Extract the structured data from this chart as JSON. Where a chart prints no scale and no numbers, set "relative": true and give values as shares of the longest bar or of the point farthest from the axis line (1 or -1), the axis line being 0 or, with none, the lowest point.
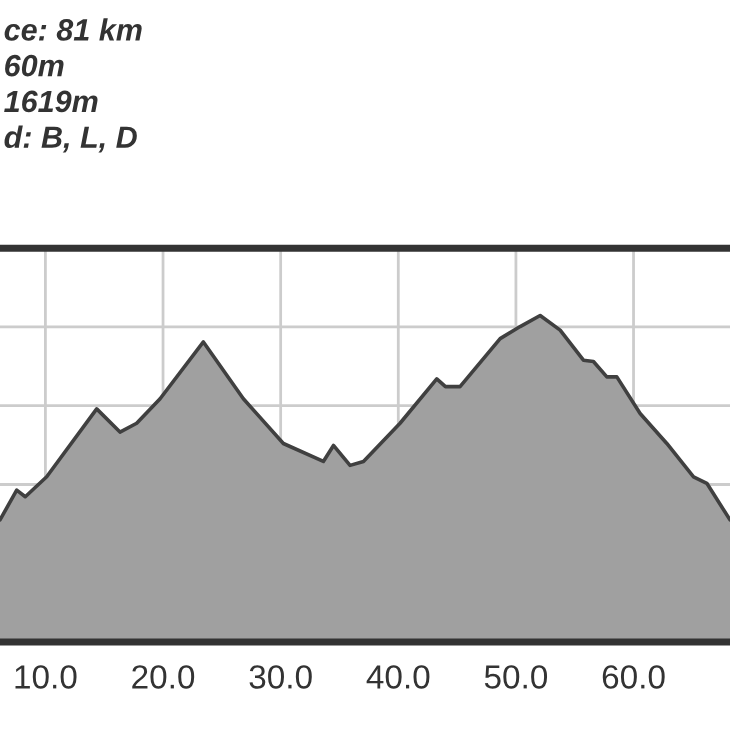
{
  "chart_data": {
    "type": "area",
    "relative": true,
    "annotations": [
      "ce: 81 km",
      "60m",
      "1619m",
      "d: B, L, D"
    ],
    "x": [
      6.14,
      7.56,
      8.29,
      10.11,
      14.36,
      16.34,
      17.76,
      19.75,
      23.43,
      26.83,
      30.23,
      33.63,
      34.49,
      35.9,
      37.04,
      40.15,
      43.27,
      44.01,
      45.25,
      48.66,
      50.36,
      52.06,
      53.76,
      55.74,
      56.59,
      57.73,
      58.58,
      60.56,
      62.83,
      65.1,
      66.23,
      68.2
    ],
    "series": [
      {
        "color": "#a0a0a0",
        "values": [
          0.374,
          0.465,
          0.445,
          0.506,
          0.714,
          0.643,
          0.67,
          0.745,
          0.919,
          0.745,
          0.608,
          0.553,
          0.602,
          0.541,
          0.553,
          0.67,
          0.806,
          0.782,
          0.782,
          0.929,
          0.966,
          1.0,
          0.955,
          0.863,
          0.859,
          0.812,
          0.812,
          0.7,
          0.608,
          0.506,
          0.486,
          0.374
        ]
      }
    ],
    "xlim": [
      6.14,
      68.2
    ],
    "xticks": [
      {
        "value": 10,
        "label": "10.0"
      },
      {
        "value": 20,
        "label": "20.0"
      },
      {
        "value": 30,
        "label": "30.0"
      },
      {
        "value": 40,
        "label": "40.0"
      },
      {
        "value": 50,
        "label": "50.0"
      },
      {
        "value": 60,
        "label": "60.0"
      }
    ],
    "grid": true,
    "tick_labels": "x"
  }
}
